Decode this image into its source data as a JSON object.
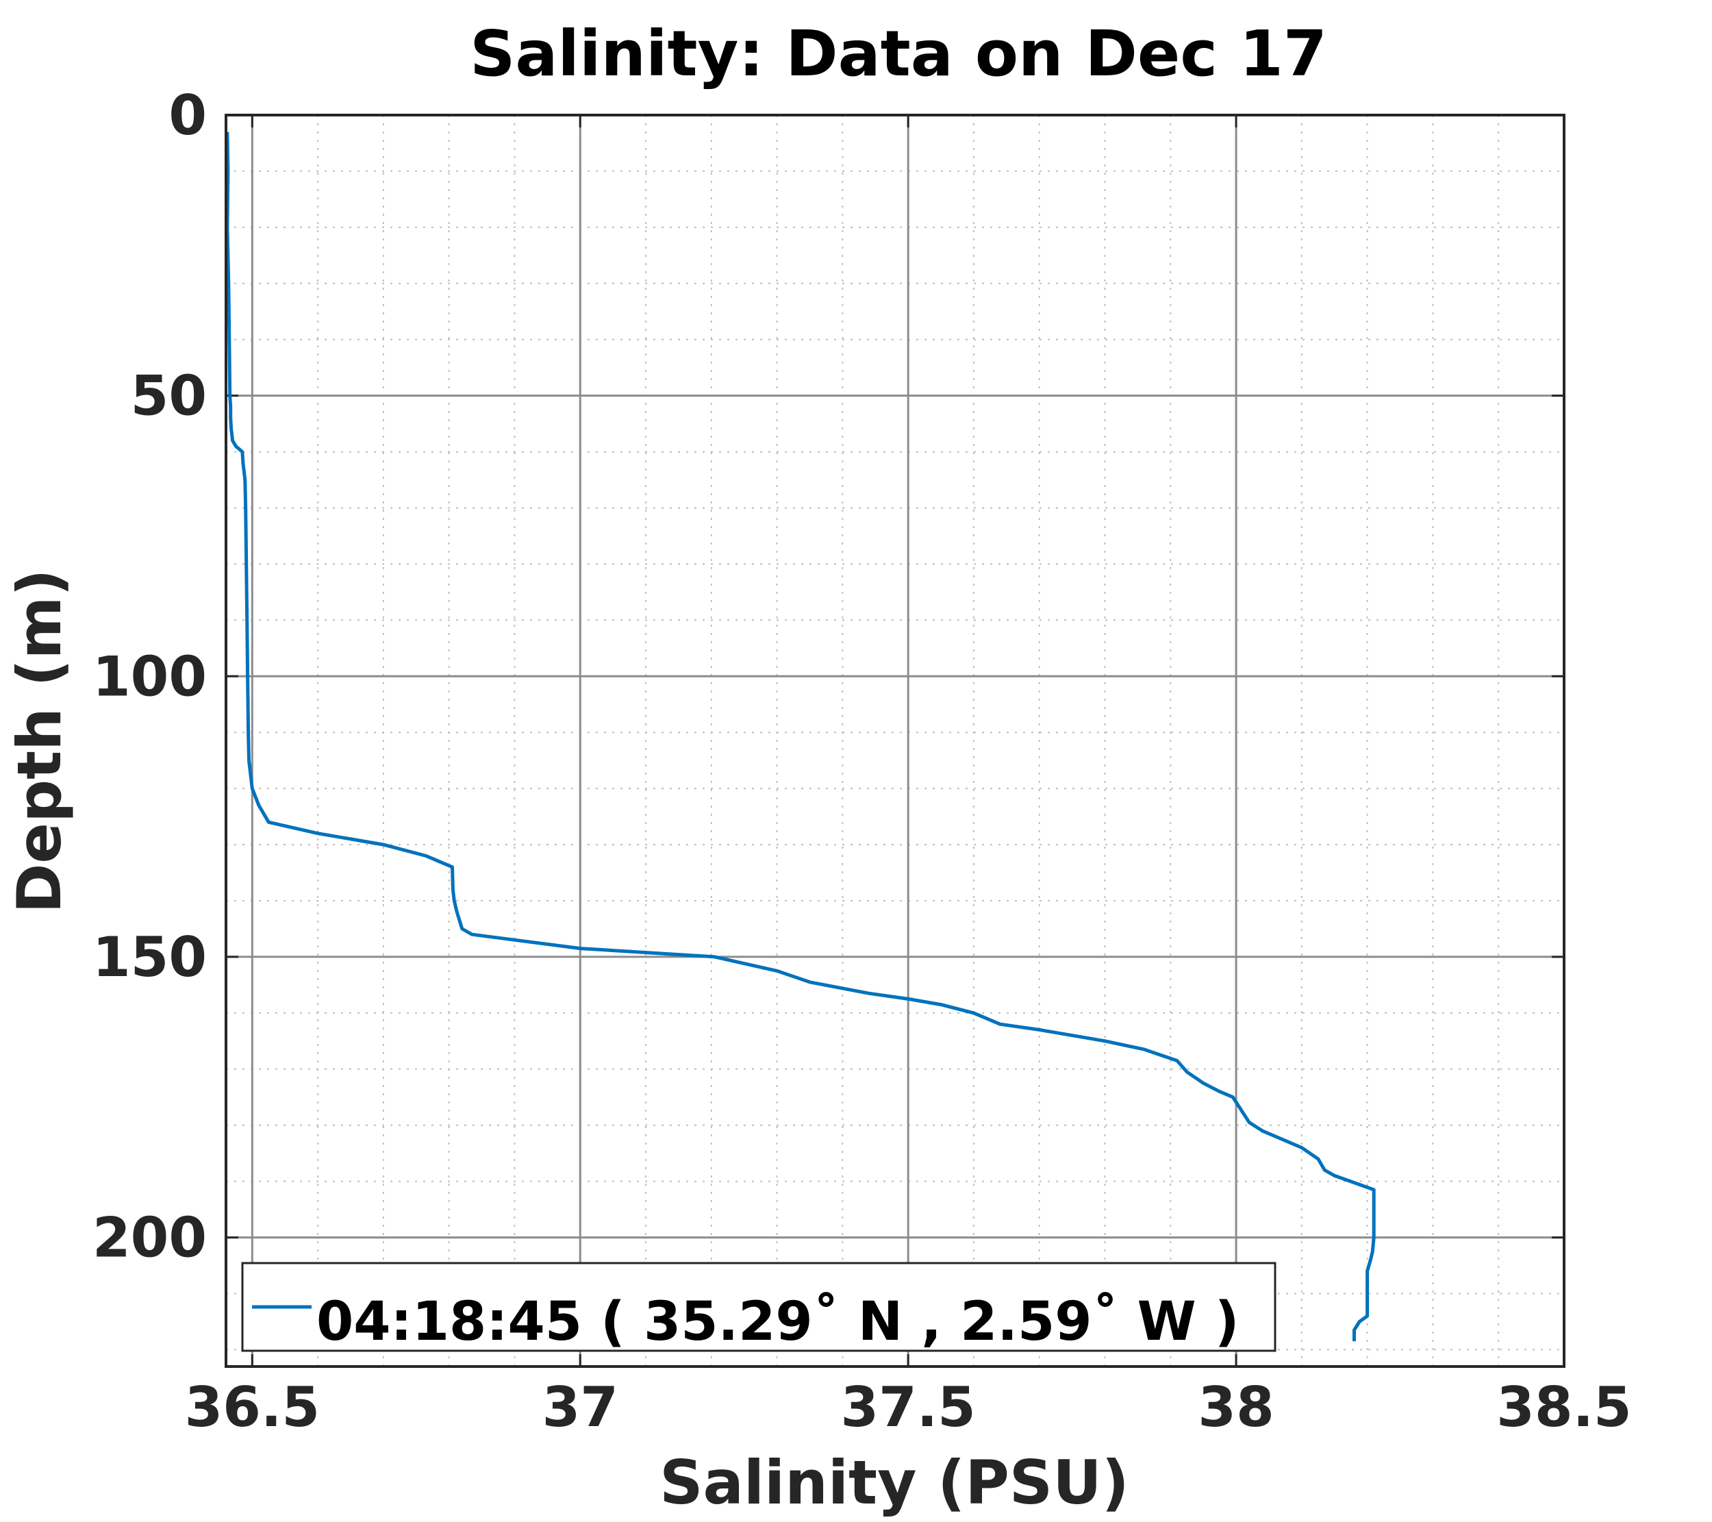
{
  "chart_data": {
    "type": "line",
    "title": "Salinity: Data on Dec 17",
    "xlabel": "Salinity (PSU)",
    "ylabel": "Depth (m)",
    "xlim": [
      36.46,
      38.5
    ],
    "ylim": [
      0,
      223
    ],
    "y_reversed": true,
    "grid": true,
    "minor_grid": true,
    "x_ticks": [
      36.5,
      37,
      37.5,
      38,
      38.5
    ],
    "x_tick_labels": [
      "36.5",
      "37",
      "37.5",
      "38",
      "38.5"
    ],
    "y_ticks": [
      0,
      50,
      100,
      150,
      200
    ],
    "y_tick_labels": [
      "0",
      "50",
      "100",
      "150",
      "200"
    ],
    "legend_position": "bottom-left",
    "series": [
      {
        "name": "04:18:45 ( 35.29˚ N , 2.59˚ W )",
        "color": "#0072BD",
        "x": [
          36.462,
          36.463,
          36.462,
          36.464,
          36.465,
          36.466,
          36.467,
          36.467,
          36.468,
          36.47,
          36.475,
          36.485,
          36.486,
          36.489,
          36.49,
          36.491,
          36.492,
          36.493,
          36.494,
          36.495,
          36.5,
          36.51,
          36.525,
          36.6,
          36.7,
          36.765,
          36.805,
          36.806,
          36.808,
          36.812,
          36.82,
          36.835,
          37.0,
          37.205,
          37.3,
          37.35,
          37.44,
          37.5,
          37.55,
          37.6,
          37.64,
          37.7,
          37.8,
          37.86,
          37.91,
          37.925,
          37.95,
          37.975,
          37.995,
          38.02,
          38.04,
          38.1,
          38.125,
          38.135,
          38.15,
          38.21,
          38.21,
          38.21,
          38.208,
          38.205,
          38.2,
          38.2,
          38.2,
          38.188,
          38.18,
          38.18
        ],
        "y": [
          3,
          10,
          20,
          30,
          40,
          50,
          52,
          54,
          56,
          58,
          59,
          60,
          62,
          65,
          70,
          80,
          90,
          100,
          110,
          115,
          120,
          123,
          126,
          128,
          130,
          132,
          134,
          138,
          140,
          142,
          145,
          146,
          148.5,
          150,
          152.5,
          154.5,
          156.5,
          157.5,
          158.5,
          160,
          162,
          163,
          165,
          166.5,
          168.5,
          170.5,
          172.5,
          174,
          175,
          179.5,
          181,
          184,
          186,
          188,
          189,
          191.5,
          195,
          200,
          202.5,
          204,
          206,
          207,
          214,
          215,
          216.5,
          218.5
        ]
      }
    ]
  }
}
